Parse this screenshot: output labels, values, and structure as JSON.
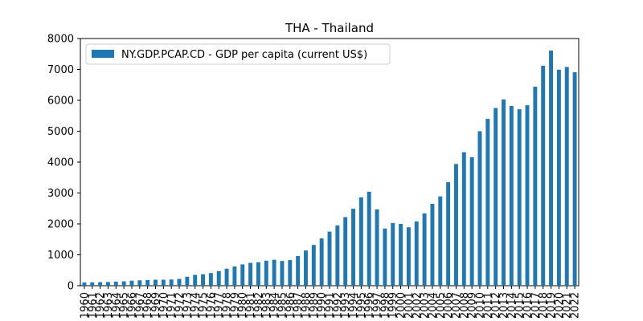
{
  "chart_data": {
    "type": "bar",
    "title": "THA - Thailand",
    "xlabel": "",
    "ylabel": "",
    "ylim": [
      0,
      8000
    ],
    "yticks": [
      0,
      1000,
      2000,
      3000,
      4000,
      5000,
      6000,
      7000,
      8000
    ],
    "grid": false,
    "legend_position": "top-left",
    "categories": [
      "1960",
      "1961",
      "1962",
      "1963",
      "1964",
      "1965",
      "1966",
      "1967",
      "1968",
      "1969",
      "1970",
      "1971",
      "1972",
      "1973",
      "1974",
      "1975",
      "1976",
      "1977",
      "1978",
      "1979",
      "1980",
      "1981",
      "1982",
      "1983",
      "1984",
      "1985",
      "1986",
      "1987",
      "1988",
      "1989",
      "1990",
      "1991",
      "1992",
      "1993",
      "1994",
      "1995",
      "1996",
      "1997",
      "1998",
      "1999",
      "2000",
      "2001",
      "2002",
      "2003",
      "2004",
      "2005",
      "2006",
      "2007",
      "2008",
      "2009",
      "2010",
      "2011",
      "2012",
      "2013",
      "2014",
      "2015",
      "2016",
      "2017",
      "2018",
      "2019",
      "2020",
      "2021",
      "2022"
    ],
    "series": [
      {
        "name": "NY.GDP.PCAP.CD - GDP per capita (current US$)",
        "color": "#1f77b4",
        "values": [
          104,
          109,
          114,
          119,
          129,
          140,
          163,
          174,
          183,
          194,
          194,
          200,
          220,
          290,
          350,
          370,
          410,
          470,
          550,
          620,
          690,
          740,
          760,
          810,
          840,
          800,
          830,
          960,
          1140,
          1320,
          1530,
          1750,
          1950,
          2220,
          2490,
          2860,
          3040,
          2470,
          1850,
          2030,
          2000,
          1890,
          2080,
          2340,
          2650,
          2890,
          3350,
          3940,
          4320,
          4160,
          5000,
          5400,
          5750,
          6030,
          5820,
          5710,
          5840,
          6440,
          7120,
          7610,
          6990,
          7080,
          6910
        ]
      }
    ]
  }
}
